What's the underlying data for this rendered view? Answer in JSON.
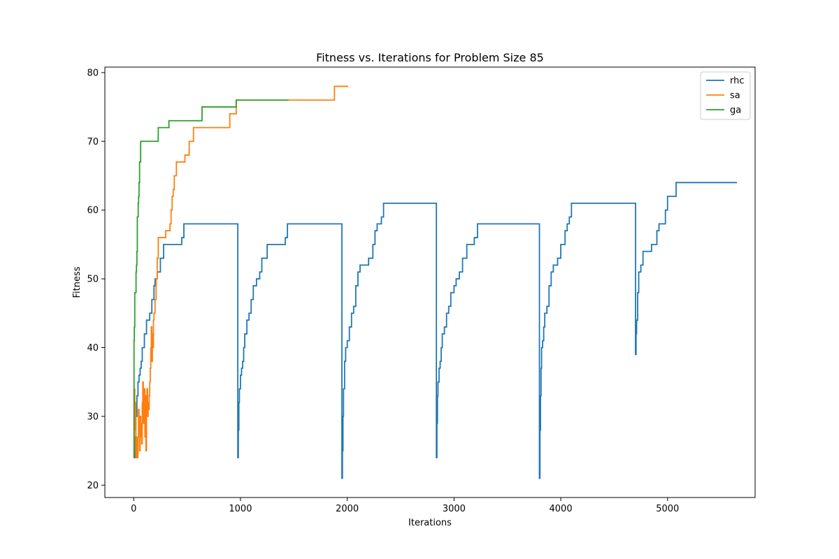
{
  "chart_data": {
    "type": "line",
    "title": "Fitness vs. Iterations for Problem Size 85",
    "xlabel": "Iterations",
    "ylabel": "Fitness",
    "xlim": [
      -270,
      5820
    ],
    "ylim": [
      18.2,
      80.8
    ],
    "xticks": [
      0,
      1000,
      2000,
      3000,
      4000,
      5000
    ],
    "yticks": [
      20,
      30,
      40,
      50,
      60,
      70,
      80
    ],
    "grid": false,
    "legend_position": "top-right",
    "step": true,
    "series": [
      {
        "name": "rhc",
        "color": "#1f77b4",
        "x": [
          0,
          10,
          20,
          30,
          40,
          50,
          60,
          70,
          80,
          100,
          120,
          150,
          170,
          190,
          200,
          220,
          250,
          280,
          300,
          350,
          400,
          450,
          470,
          500,
          970,
          975,
          980,
          985,
          990,
          1000,
          1010,
          1020,
          1030,
          1040,
          1060,
          1080,
          1100,
          1120,
          1150,
          1180,
          1200,
          1230,
          1250,
          1270,
          1300,
          1420,
          1440,
          1460,
          1945,
          1950,
          1955,
          1960,
          1965,
          1975,
          1985,
          2000,
          2020,
          2040,
          2060,
          2080,
          2100,
          2120,
          2160,
          2200,
          2240,
          2260,
          2280,
          2320,
          2340,
          2830,
          2835,
          2840,
          2845,
          2850,
          2860,
          2870,
          2880,
          2890,
          2910,
          2930,
          2950,
          2970,
          3000,
          3020,
          3050,
          3080,
          3100,
          3120,
          3150,
          3170,
          3190,
          3220,
          3250,
          3280,
          3300,
          3320,
          3800,
          3805,
          3810,
          3815,
          3820,
          3830,
          3840,
          3850,
          3870,
          3890,
          3910,
          3930,
          3950,
          3970,
          4000,
          4040,
          4060,
          4080,
          4100,
          4140,
          4160,
          4190,
          4210,
          4700,
          4705,
          4710,
          4720,
          4730,
          4740,
          4750,
          4770,
          4800,
          4820,
          4850,
          4900,
          4920,
          4950,
          4980,
          5000,
          5040,
          5080,
          5130,
          5650
        ],
        "y": [
          24,
          27,
          30,
          33,
          35,
          36,
          37,
          38,
          40,
          42,
          44,
          45,
          47,
          49,
          50,
          51,
          53,
          55,
          55,
          55,
          55,
          56,
          58,
          58,
          58,
          24,
          28,
          32,
          34,
          36,
          37,
          38,
          40,
          42,
          44,
          45,
          47,
          49,
          50,
          51,
          53,
          53,
          55,
          55,
          55,
          56,
          58,
          58,
          58,
          21,
          25,
          30,
          34,
          38,
          40,
          41,
          43,
          45,
          46,
          49,
          51,
          52,
          52,
          53,
          55,
          57,
          58,
          59,
          61,
          61,
          24,
          29,
          33,
          35,
          37,
          38,
          40,
          42,
          43,
          45,
          46,
          48,
          49,
          50,
          51,
          53,
          53,
          55,
          55,
          55,
          56,
          58,
          58,
          58,
          58,
          58,
          21,
          28,
          33,
          37,
          40,
          41,
          43,
          45,
          46,
          49,
          51,
          52,
          52,
          53,
          55,
          57,
          58,
          59,
          61,
          61,
          61,
          61,
          61,
          39,
          42,
          44,
          48,
          51,
          51,
          52,
          54,
          54,
          54,
          55,
          57,
          58,
          58,
          60,
          62,
          62,
          64,
          64,
          64
        ],
        "x_end": 5650
      },
      {
        "name": "sa",
        "color": "#ff7f0e",
        "x": [
          0,
          5,
          10,
          15,
          20,
          25,
          30,
          35,
          40,
          45,
          50,
          55,
          60,
          65,
          70,
          75,
          80,
          85,
          90,
          95,
          100,
          105,
          110,
          115,
          120,
          125,
          130,
          135,
          140,
          145,
          150,
          155,
          160,
          165,
          170,
          175,
          180,
          185,
          190,
          200,
          210,
          220,
          230,
          240,
          260,
          280,
          300,
          320,
          340,
          350,
          360,
          370,
          380,
          390,
          400,
          440,
          480,
          520,
          540,
          560,
          600,
          700,
          800,
          900,
          920,
          960,
          980,
          1100,
          1200,
          1300,
          1400,
          1600,
          1800,
          1880,
          1900,
          1950,
          2010
        ],
        "y": [
          25,
          34,
          28,
          32,
          24,
          27,
          26,
          24,
          27,
          31,
          28,
          25,
          30,
          27,
          29,
          26,
          32,
          35,
          29,
          30,
          34,
          27,
          33,
          25,
          31,
          34,
          30,
          32,
          31,
          33,
          35,
          37,
          40,
          43,
          38,
          42,
          40,
          44,
          45,
          47,
          50,
          53,
          56,
          56,
          56,
          56,
          57,
          57,
          58,
          60,
          62,
          63,
          65,
          65,
          67,
          67,
          68,
          70,
          70,
          72,
          72,
          72,
          72,
          74,
          74,
          76,
          76,
          76,
          76,
          76,
          76,
          76,
          76,
          78,
          78,
          78,
          78
        ],
        "x_end": 2010
      },
      {
        "name": "ga",
        "color": "#2ca02c",
        "x": [
          0,
          3,
          6,
          10,
          14,
          18,
          22,
          26,
          30,
          34,
          38,
          42,
          46,
          50,
          55,
          60,
          65,
          70,
          80,
          230,
          240,
          330,
          350,
          640,
          650,
          960,
          970,
          1450
        ],
        "y": [
          24,
          41,
          43,
          48,
          48,
          48,
          51,
          52,
          54,
          59,
          59,
          61,
          62,
          64,
          67,
          67,
          70,
          70,
          70,
          72,
          72,
          73,
          73,
          75,
          75,
          76,
          76,
          76
        ],
        "x_end": 1450
      }
    ]
  }
}
